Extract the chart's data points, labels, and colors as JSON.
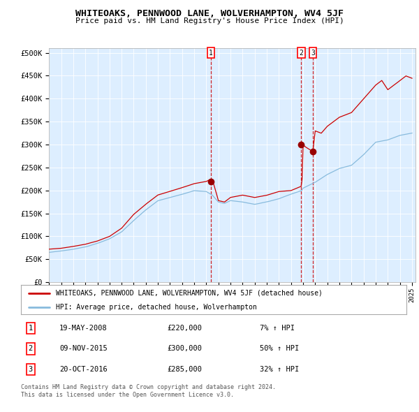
{
  "title": "WHITEOAKS, PENNWOOD LANE, WOLVERHAMPTON, WV4 5JF",
  "subtitle": "Price paid vs. HM Land Registry's House Price Index (HPI)",
  "line1_label": "WHITEOAKS, PENNWOOD LANE, WOLVERHAMPTON, WV4 5JF (detached house)",
  "line2_label": "HPI: Average price, detached house, Wolverhampton",
  "line1_color": "#cc0000",
  "line2_color": "#88bbdd",
  "bg_color": "#ddeeff",
  "sale_dates_yr": [
    2008.38,
    2015.85,
    2016.8
  ],
  "sale_prices": [
    220000,
    300000,
    285000
  ],
  "sale_labels": [
    "1",
    "2",
    "3"
  ],
  "sale_info": [
    {
      "num": "1",
      "date": "19-MAY-2008",
      "price": "£220,000",
      "hpi": "7% ↑ HPI"
    },
    {
      "num": "2",
      "date": "09-NOV-2015",
      "price": "£300,000",
      "hpi": "50% ↑ HPI"
    },
    {
      "num": "3",
      "date": "20-OCT-2016",
      "price": "£285,000",
      "hpi": "32% ↑ HPI"
    }
  ],
  "ylabel_ticks": [
    0,
    50000,
    100000,
    150000,
    200000,
    250000,
    300000,
    350000,
    400000,
    450000,
    500000
  ],
  "ylabel_labels": [
    "£0",
    "£50K",
    "£100K",
    "£150K",
    "£200K",
    "£250K",
    "£300K",
    "£350K",
    "£400K",
    "£450K",
    "£500K"
  ],
  "hpi_key_points_x": [
    1995.0,
    1996.0,
    1997.0,
    1998.0,
    1999.0,
    2000.0,
    2001.0,
    2002.0,
    2003.0,
    2004.0,
    2005.0,
    2006.0,
    2007.0,
    2008.0,
    2008.5,
    2009.0,
    2009.5,
    2010.0,
    2011.0,
    2012.0,
    2013.0,
    2014.0,
    2015.0,
    2015.9,
    2016.0,
    2017.0,
    2018.0,
    2019.0,
    2020.0,
    2021.0,
    2022.0,
    2023.0,
    2024.0,
    2025.0
  ],
  "hpi_key_points_y": [
    65000,
    68000,
    72000,
    77000,
    85000,
    95000,
    110000,
    135000,
    158000,
    178000,
    185000,
    192000,
    200000,
    198000,
    190000,
    175000,
    172000,
    178000,
    175000,
    170000,
    175000,
    182000,
    192000,
    200000,
    205000,
    218000,
    235000,
    248000,
    255000,
    278000,
    305000,
    310000,
    320000,
    325000
  ],
  "red_key_points_x": [
    1995.0,
    1996.0,
    1997.0,
    1998.0,
    1999.0,
    2000.0,
    2001.0,
    2002.0,
    2003.0,
    2004.0,
    2005.0,
    2006.0,
    2007.0,
    2008.0,
    2008.4,
    2008.6,
    2009.0,
    2009.5,
    2010.0,
    2011.0,
    2012.0,
    2013.0,
    2014.0,
    2015.0,
    2015.9,
    2016.0,
    2016.2,
    2016.8,
    2017.0,
    2017.5,
    2018.0,
    2019.0,
    2020.0,
    2021.0,
    2022.0,
    2022.5,
    2023.0,
    2023.5,
    2024.0,
    2024.5,
    2025.0
  ],
  "red_key_points_y": [
    72000,
    74000,
    78000,
    83000,
    90000,
    100000,
    118000,
    148000,
    170000,
    190000,
    198000,
    206000,
    215000,
    220000,
    225000,
    215000,
    178000,
    175000,
    185000,
    190000,
    185000,
    190000,
    198000,
    200000,
    210000,
    300000,
    295000,
    285000,
    330000,
    325000,
    340000,
    360000,
    370000,
    400000,
    430000,
    440000,
    420000,
    430000,
    440000,
    450000,
    445000
  ],
  "footer1": "Contains HM Land Registry data © Crown copyright and database right 2024.",
  "footer2": "This data is licensed under the Open Government Licence v3.0."
}
